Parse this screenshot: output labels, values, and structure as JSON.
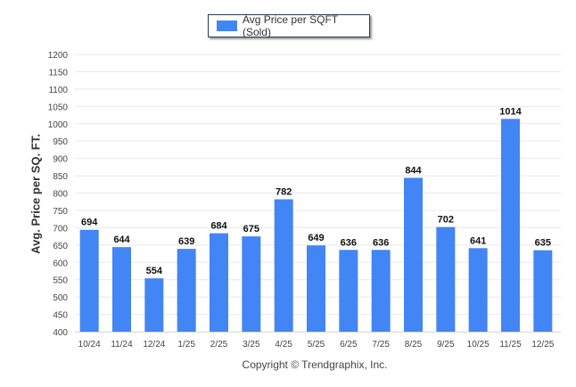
{
  "chart_data": {
    "type": "bar",
    "title": "",
    "legend": {
      "label": "Avg Price per SQFT (Sold)",
      "position": "top-center"
    },
    "xlabel": "",
    "ylabel": "Avg. Price per SQ. FT.",
    "categories": [
      "10/24",
      "11/24",
      "12/24",
      "1/25",
      "2/25",
      "3/25",
      "4/25",
      "5/25",
      "6/25",
      "7/25",
      "8/25",
      "9/25",
      "10/25",
      "11/25",
      "12/25"
    ],
    "values": [
      694,
      644,
      554,
      639,
      684,
      675,
      782,
      649,
      636,
      636,
      844,
      702,
      641,
      1014,
      635
    ],
    "ylim": [
      400,
      1200
    ],
    "yticks": [
      400,
      450,
      500,
      550,
      600,
      650,
      700,
      750,
      800,
      850,
      900,
      950,
      1000,
      1050,
      1100,
      1150,
      1200
    ],
    "grid": true,
    "color": "#4285f4"
  },
  "footer": {
    "copyright": "Copyright © Trendgraphix, Inc."
  }
}
